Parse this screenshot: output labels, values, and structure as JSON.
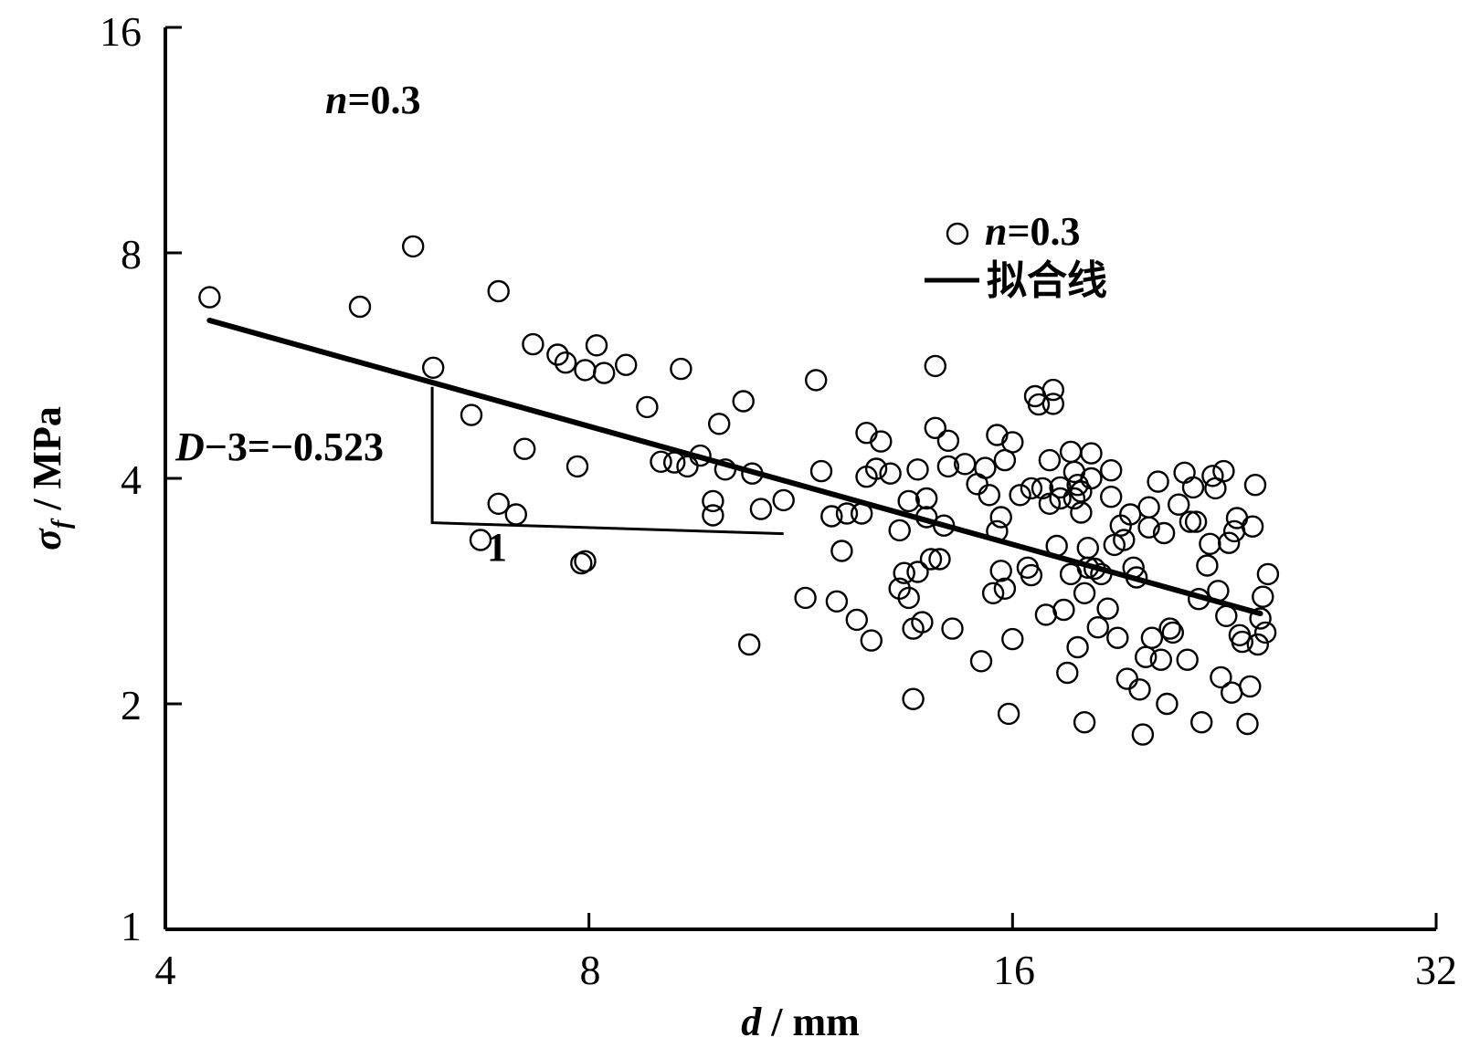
{
  "chart_data": {
    "type": "scatter",
    "xscale": "log2",
    "yscale": "log2",
    "xlim": [
      4,
      32
    ],
    "ylim": [
      1,
      16
    ],
    "x_ticks": [
      "4",
      "8",
      "16",
      "32"
    ],
    "y_ticks": [
      "1",
      "2",
      "4",
      "8",
      "16"
    ],
    "xlabel": {
      "symbol": "d",
      "unit": " / mm"
    },
    "ylabel": {
      "symbol": "σ",
      "subscript": "f",
      "unit": " / MPa"
    },
    "annotations": {
      "top_left": {
        "italic": "n",
        "rest": "=0.3"
      },
      "slope": {
        "italic": "D",
        "rest": "−3=−0.523"
      },
      "run": "1"
    },
    "legend": {
      "position": "top-right",
      "scatter": {
        "italic": "n",
        "rest": "=0.3"
      },
      "line": "拟合线"
    },
    "fit_line": {
      "slope": -0.523,
      "x_range": [
        4.3,
        24.0
      ],
      "y_at_x1": [
        6.5,
        2.64
      ]
    },
    "slope_triangle": {
      "x_range": [
        6.19,
        11.0
      ],
      "y_range": [
        3.49,
        5.3
      ]
    },
    "series": [
      {
        "type": "scatter",
        "points": [
          [
            4.3,
            6.98
          ],
          [
            5.5,
            6.78
          ],
          [
            6.0,
            8.16
          ],
          [
            6.2,
            5.62
          ],
          [
            6.6,
            4.86
          ],
          [
            6.7,
            3.31
          ],
          [
            6.9,
            3.7
          ],
          [
            6.9,
            7.11
          ],
          [
            7.1,
            3.58
          ],
          [
            7.2,
            4.38
          ],
          [
            7.3,
            6.04
          ],
          [
            7.6,
            5.85
          ],
          [
            7.7,
            5.71
          ],
          [
            7.85,
            4.15
          ],
          [
            7.9,
            3.08
          ],
          [
            7.95,
            3.1
          ],
          [
            7.95,
            5.58
          ],
          [
            8.1,
            6.02
          ],
          [
            8.2,
            5.53
          ],
          [
            8.5,
            5.67
          ],
          [
            8.8,
            4.98
          ],
          [
            9.0,
            4.21
          ],
          [
            9.2,
            4.2
          ],
          [
            9.3,
            5.6
          ],
          [
            9.4,
            4.15
          ],
          [
            9.6,
            4.29
          ],
          [
            9.8,
            3.73
          ],
          [
            9.8,
            3.57
          ],
          [
            9.9,
            4.73
          ],
          [
            10.0,
            4.11
          ],
          [
            10.3,
            5.07
          ],
          [
            10.4,
            2.4
          ],
          [
            10.45,
            4.06
          ],
          [
            10.6,
            3.64
          ],
          [
            11.0,
            3.74
          ],
          [
            11.4,
            2.77
          ],
          [
            11.6,
            5.41
          ],
          [
            11.7,
            4.09
          ],
          [
            11.9,
            3.56
          ],
          [
            12.0,
            2.74
          ],
          [
            12.1,
            3.2
          ],
          [
            12.2,
            3.59
          ],
          [
            12.4,
            2.59
          ],
          [
            12.5,
            3.59
          ],
          [
            12.6,
            4.6
          ],
          [
            12.6,
            4.02
          ],
          [
            12.7,
            2.43
          ],
          [
            12.8,
            4.12
          ],
          [
            12.9,
            4.48
          ],
          [
            13.1,
            4.06
          ],
          [
            13.3,
            2.85
          ],
          [
            13.3,
            3.41
          ],
          [
            13.4,
            2.99
          ],
          [
            13.5,
            3.73
          ],
          [
            13.5,
            2.77
          ],
          [
            13.6,
            2.52
          ],
          [
            13.6,
            2.03
          ],
          [
            13.7,
            4.11
          ],
          [
            13.7,
            3.0
          ],
          [
            13.8,
            2.57
          ],
          [
            13.9,
            3.76
          ],
          [
            13.9,
            3.55
          ],
          [
            14.0,
            3.12
          ],
          [
            14.1,
            4.67
          ],
          [
            14.1,
            5.65
          ],
          [
            14.2,
            3.12
          ],
          [
            14.3,
            3.46
          ],
          [
            14.4,
            4.15
          ],
          [
            14.4,
            4.49
          ],
          [
            14.5,
            2.52
          ],
          [
            14.8,
            4.18
          ],
          [
            15.1,
            3.93
          ],
          [
            15.2,
            2.28
          ],
          [
            15.3,
            4.13
          ],
          [
            15.4,
            3.8
          ],
          [
            15.5,
            2.81
          ],
          [
            15.6,
            4.57
          ],
          [
            15.6,
            3.4
          ],
          [
            15.7,
            3.55
          ],
          [
            15.7,
            3.01
          ],
          [
            15.8,
            4.23
          ],
          [
            15.8,
            2.85
          ],
          [
            15.9,
            1.94
          ],
          [
            16.0,
            4.47
          ],
          [
            16.0,
            2.44
          ],
          [
            16.2,
            3.8
          ],
          [
            16.4,
            3.04
          ],
          [
            16.5,
            3.88
          ],
          [
            16.5,
            2.97
          ],
          [
            16.6,
            5.15
          ],
          [
            16.7,
            5.02
          ],
          [
            16.8,
            3.88
          ],
          [
            16.9,
            2.63
          ],
          [
            17.0,
            4.23
          ],
          [
            17.0,
            3.7
          ],
          [
            17.1,
            5.25
          ],
          [
            17.1,
            5.03
          ],
          [
            17.2,
            3.25
          ],
          [
            17.3,
            3.89
          ],
          [
            17.3,
            3.76
          ],
          [
            17.4,
            2.67
          ],
          [
            17.5,
            2.2
          ],
          [
            17.6,
            4.34
          ],
          [
            17.6,
            2.98
          ],
          [
            17.7,
            4.08
          ],
          [
            17.7,
            3.76
          ],
          [
            17.8,
            2.38
          ],
          [
            17.8,
            3.92
          ],
          [
            17.9,
            3.84
          ],
          [
            17.9,
            3.6
          ],
          [
            18.0,
            2.81
          ],
          [
            18.0,
            1.89
          ],
          [
            18.1,
            3.23
          ],
          [
            18.1,
            3.04
          ],
          [
            18.2,
            4.32
          ],
          [
            18.2,
            4.0
          ],
          [
            18.3,
            3.03
          ],
          [
            18.4,
            2.53
          ],
          [
            18.5,
            2.98
          ],
          [
            18.7,
            2.68
          ],
          [
            18.8,
            4.1
          ],
          [
            18.8,
            3.78
          ],
          [
            18.9,
            3.26
          ],
          [
            19.0,
            2.45
          ],
          [
            19.1,
            3.46
          ],
          [
            19.2,
            3.31
          ],
          [
            19.3,
            2.16
          ],
          [
            19.4,
            3.58
          ],
          [
            19.5,
            3.04
          ],
          [
            19.6,
            2.95
          ],
          [
            19.7,
            2.09
          ],
          [
            19.8,
            1.82
          ],
          [
            19.9,
            2.31
          ],
          [
            20.0,
            3.66
          ],
          [
            20.0,
            3.44
          ],
          [
            20.1,
            2.45
          ],
          [
            20.3,
            3.96
          ],
          [
            20.4,
            2.29
          ],
          [
            20.5,
            3.38
          ],
          [
            20.6,
            2.0
          ],
          [
            20.7,
            2.52
          ],
          [
            20.8,
            2.49
          ],
          [
            21.0,
            3.69
          ],
          [
            21.2,
            4.07
          ],
          [
            21.3,
            2.29
          ],
          [
            21.4,
            3.5
          ],
          [
            21.5,
            3.89
          ],
          [
            21.6,
            3.5
          ],
          [
            21.7,
            2.76
          ],
          [
            21.8,
            1.89
          ],
          [
            22.0,
            3.06
          ],
          [
            22.1,
            3.27
          ],
          [
            22.2,
            4.03
          ],
          [
            22.3,
            3.88
          ],
          [
            22.4,
            2.83
          ],
          [
            22.5,
            2.17
          ],
          [
            22.6,
            4.09
          ],
          [
            22.7,
            2.62
          ],
          [
            22.8,
            3.28
          ],
          [
            22.9,
            2.07
          ],
          [
            23.0,
            3.4
          ],
          [
            23.1,
            3.54
          ],
          [
            23.2,
            2.47
          ],
          [
            23.3,
            2.42
          ],
          [
            23.5,
            1.88
          ],
          [
            23.6,
            2.11
          ],
          [
            23.7,
            3.45
          ],
          [
            23.8,
            3.92
          ],
          [
            23.9,
            2.4
          ],
          [
            24.0,
            2.6
          ],
          [
            24.1,
            2.78
          ],
          [
            24.2,
            2.49
          ],
          [
            24.3,
            2.98
          ]
        ]
      }
    ]
  }
}
